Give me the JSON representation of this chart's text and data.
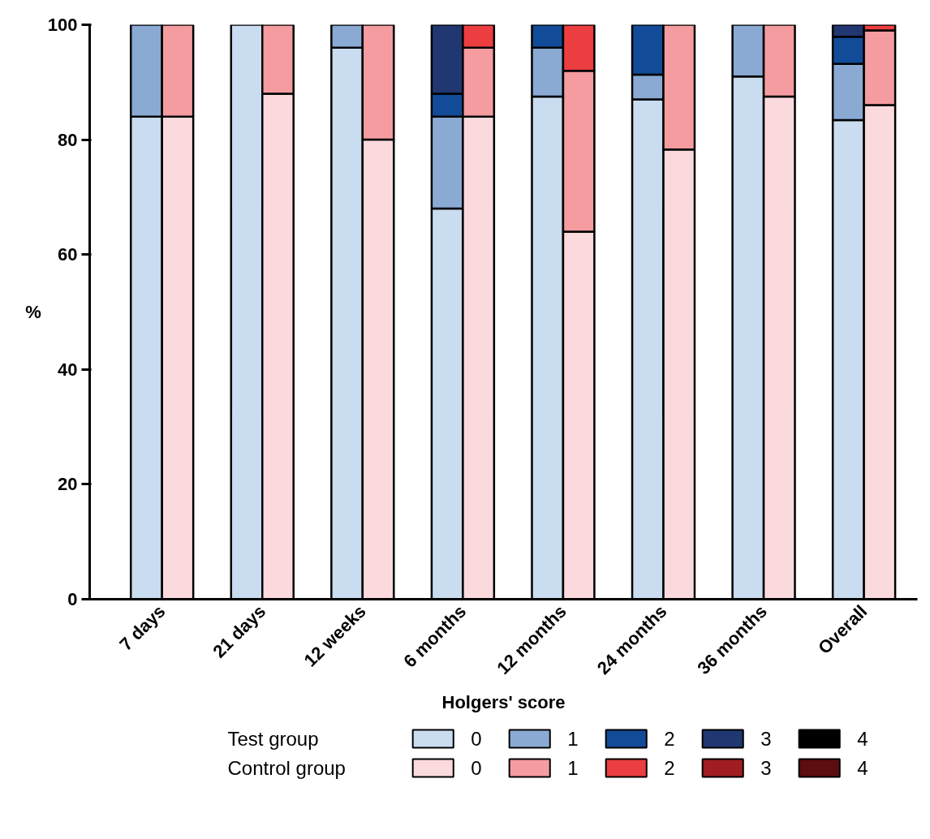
{
  "chart_data": {
    "type": "bar",
    "stacked": true,
    "xlabel": "Holgers' score",
    "ylabel": "%",
    "categories": [
      "7 days",
      null,
      "21 days",
      null,
      "12 weeks",
      null,
      "6 months",
      null,
      "12 months",
      null,
      "24 months",
      null,
      "36 months",
      null,
      "Overall",
      null
    ],
    "ylim": [
      0,
      100
    ],
    "yticks": [
      0,
      20,
      40,
      60,
      80,
      100
    ],
    "grid": false,
    "legend": "bottom",
    "annotations": [
      "Test group",
      "Control group"
    ],
    "series": [
      {
        "name": "0",
        "color": "#c9dcf0",
        "values": [
          84,
          null,
          100,
          null,
          96,
          null,
          68,
          null,
          87.5,
          null,
          87,
          null,
          91,
          null,
          83.4,
          null
        ]
      },
      {
        "name": "1",
        "color": "#8aaad4",
        "values": [
          16,
          null,
          0,
          null,
          4,
          null,
          16,
          null,
          8.5,
          null,
          4.3,
          null,
          9,
          null,
          9.8,
          null
        ]
      },
      {
        "name": "2",
        "color": "#124c98",
        "values": [
          0,
          null,
          0,
          null,
          0,
          null,
          4,
          null,
          4,
          null,
          8.7,
          null,
          0,
          null,
          4.7,
          null
        ]
      },
      {
        "name": "3",
        "color": "#213771",
        "values": [
          0,
          null,
          0,
          null,
          0,
          null,
          12,
          null,
          0,
          null,
          0,
          null,
          0,
          null,
          2.1,
          null
        ]
      },
      {
        "name": "4",
        "color": "#000000",
        "values": [
          0,
          null,
          0,
          null,
          0,
          null,
          0,
          null,
          0,
          null,
          0,
          null,
          0,
          null,
          0,
          null
        ]
      },
      {
        "name": "0",
        "color": "#fbdadd",
        "values": [
          null,
          84,
          null,
          88,
          null,
          80,
          null,
          84,
          null,
          64,
          null,
          78.3,
          null,
          87.5,
          null,
          86
        ]
      },
      {
        "name": "1",
        "color": "#f49ca0",
        "values": [
          null,
          16,
          null,
          12,
          null,
          20,
          null,
          12,
          null,
          28,
          null,
          21.7,
          null,
          12.5,
          null,
          13
        ]
      },
      {
        "name": "2",
        "color": "#ec3e41",
        "values": [
          null,
          0,
          null,
          0,
          null,
          0,
          null,
          4,
          null,
          8,
          null,
          0,
          null,
          0,
          null,
          1
        ]
      },
      {
        "name": "3",
        "color": "#a01d22",
        "values": [
          null,
          0,
          null,
          0,
          null,
          0,
          null,
          0,
          null,
          0,
          null,
          0,
          null,
          0,
          null,
          0
        ]
      },
      {
        "name": "4",
        "color": "#5c0d10",
        "values": [
          null,
          0,
          null,
          0,
          null,
          0,
          null,
          0,
          null,
          0,
          null,
          0,
          null,
          0,
          null,
          0
        ]
      }
    ]
  }
}
